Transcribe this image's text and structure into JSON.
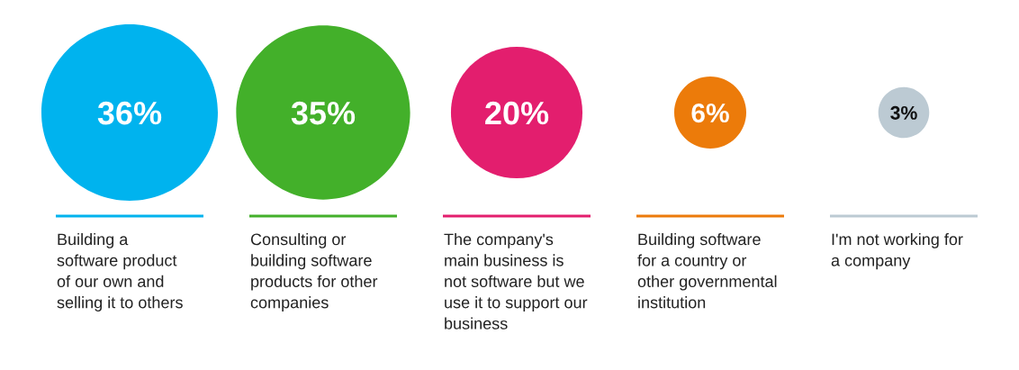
{
  "chart_data": {
    "type": "other",
    "categories": [
      "Building a\nsoftware product\nof our own and\nselling it to others",
      "Consulting or\nbuilding software\nproducts for other\ncompanies",
      "The company's\nmain business is\nnot software but we\nuse it to support our\nbusiness",
      "Building software\nfor a country or\nother governmental\ninstitution",
      "I'm not working for\na company"
    ],
    "values": [
      36,
      35,
      20,
      6,
      3
    ],
    "colors": [
      "#00b3ee",
      "#43b02a",
      "#e31e6e",
      "#ec7b0a",
      "#bccad3"
    ],
    "value_labels": [
      "36%",
      "35%",
      "20%",
      "6%",
      "3%"
    ]
  }
}
